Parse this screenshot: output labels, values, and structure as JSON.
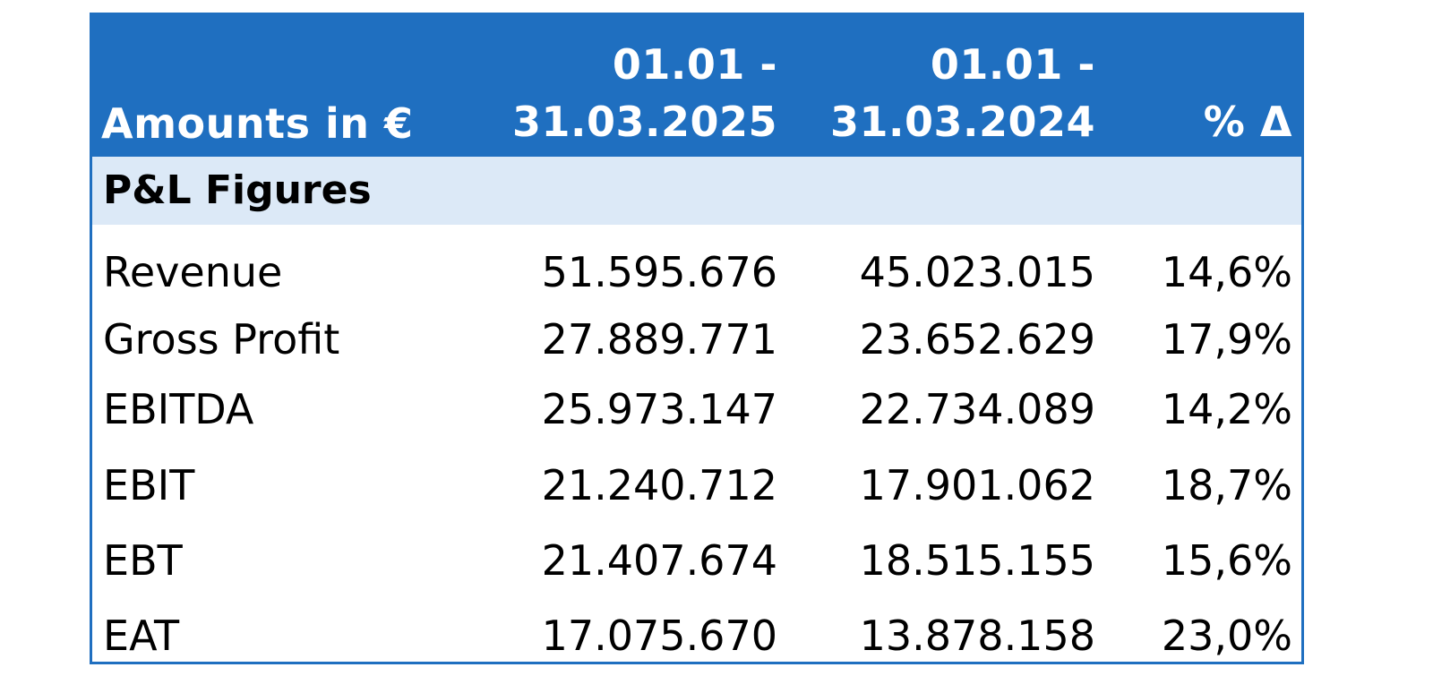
{
  "header": {
    "amounts_label": "Amounts in €",
    "col1_line1": "01.01 -",
    "col1_line2": "31.03.2025",
    "col2_line1": "01.01 -",
    "col2_line2": "31.03.2024",
    "pct_label": "% Δ"
  },
  "section": {
    "title": "P&L Figures"
  },
  "rows": [
    {
      "label": "Revenue",
      "v2025": "51.595.676",
      "v2024": "45.023.015",
      "pct": "14,6%"
    },
    {
      "label": "Gross Profit",
      "v2025": "27.889.771",
      "v2024": "23.652.629",
      "pct": "17,9%"
    },
    {
      "label": "EBITDA",
      "v2025": "25.973.147",
      "v2024": "22.734.089",
      "pct": "14,2%"
    },
    {
      "label": "EBIT",
      "v2025": "21.240.712",
      "v2024": "17.901.062",
      "pct": "18,7%"
    },
    {
      "label": "EBT",
      "v2025": "21.407.674",
      "v2024": "18.515.155",
      "pct": "15,6%"
    },
    {
      "label": "EAT",
      "v2025": "17.075.670",
      "v2024": "13.878.158",
      "pct": "23,0%"
    }
  ],
  "colors": {
    "header_bg": "#1f6fc0",
    "section_bg": "#dce9f7",
    "border": "#1f6fc0"
  }
}
